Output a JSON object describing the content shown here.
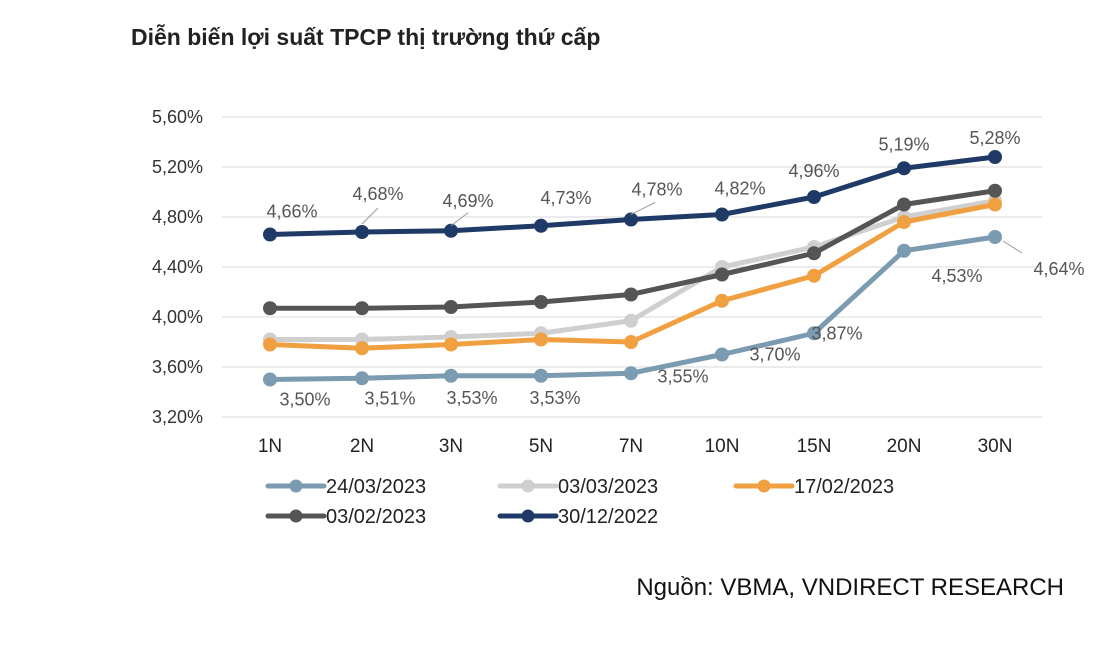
{
  "page": {
    "title": "Diễn biến lợi suất TPCP thị trường thứ cấp",
    "source": "Nguồn: VBMA, VNDIRECT RESEARCH"
  },
  "chart_data": {
    "type": "line",
    "categories": [
      "1N",
      "2N",
      "3N",
      "5N",
      "7N",
      "10N",
      "15N",
      "20N",
      "30N"
    ],
    "ylim": [
      3.2,
      5.6
    ],
    "yticks": [
      3.2,
      3.6,
      4.0,
      4.4,
      4.8,
      5.2,
      5.6
    ],
    "ytick_labels": [
      "3,20%",
      "3,60%",
      "4,00%",
      "4,40%",
      "4,80%",
      "5,20%",
      "5,60%"
    ],
    "grid": true,
    "legend_position": "bottom",
    "series": [
      {
        "name": "24/03/2023",
        "color": "#7a9bb0",
        "values": [
          3.5,
          3.51,
          3.53,
          3.53,
          3.55,
          3.7,
          3.87,
          4.53,
          4.64
        ],
        "labels": [
          "3,50%",
          "3,51%",
          "3,53%",
          "3,53%",
          "3,55%",
          "3,70%",
          "3,87%",
          "4,53%",
          "4,64%"
        ]
      },
      {
        "name": "03/03/2023",
        "color": "#cfcfcf",
        "values": [
          3.82,
          3.82,
          3.84,
          3.87,
          3.97,
          4.4,
          4.56,
          4.8,
          4.93
        ],
        "labels": []
      },
      {
        "name": "17/02/2023",
        "color": "#f0a040",
        "values": [
          3.78,
          3.75,
          3.78,
          3.82,
          3.8,
          4.13,
          4.33,
          4.76,
          4.9
        ],
        "labels": []
      },
      {
        "name": "03/02/2023",
        "color": "#555555",
        "values": [
          4.07,
          4.07,
          4.08,
          4.12,
          4.18,
          4.34,
          4.51,
          4.9,
          5.01
        ],
        "labels": []
      },
      {
        "name": "30/12/2022",
        "color": "#1f3a66",
        "values": [
          4.66,
          4.68,
          4.69,
          4.73,
          4.78,
          4.82,
          4.96,
          5.19,
          5.28
        ],
        "labels": [
          "4,66%",
          "4,68%",
          "4,69%",
          "4,73%",
          "4,78%",
          "4,82%",
          "4,96%",
          "5,19%",
          "5,28%"
        ]
      }
    ]
  }
}
